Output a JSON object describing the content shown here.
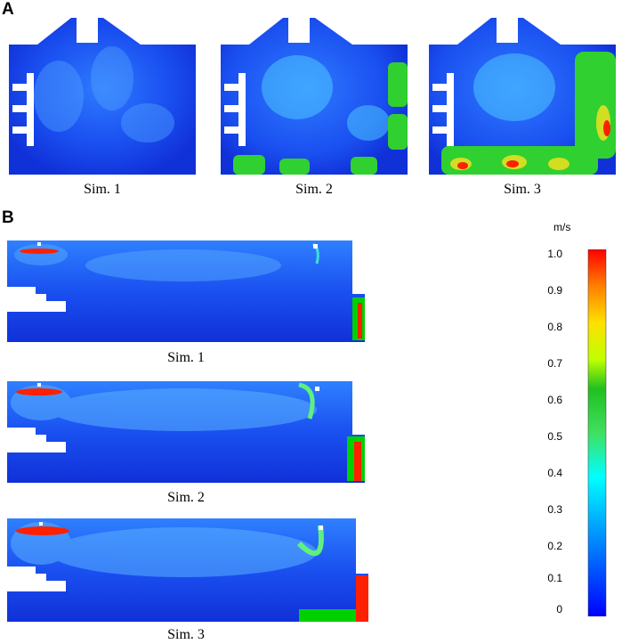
{
  "panels": [
    {
      "letter": "A",
      "captions": [
        "Sim. 1",
        "Sim. 2",
        "Sim. 3"
      ]
    },
    {
      "letter": "B",
      "captions": [
        "Sim. 1",
        "Sim. 2",
        "Sim. 3"
      ]
    }
  ],
  "colorbar": {
    "unit": "m/s",
    "ticks": [
      "1.0",
      "0.9",
      "0.8",
      "0.7",
      "0.6",
      "0.5",
      "0.4",
      "0.3",
      "0.2",
      "0.1",
      "0"
    ],
    "colors": [
      "#ff0000",
      "#ffa000",
      "#ffe000",
      "#c8ff00",
      "#00d000",
      "#20e040",
      "#40ff80",
      "#00ffff",
      "#00b0ff",
      "#0050ff",
      "#0000ff"
    ]
  }
}
